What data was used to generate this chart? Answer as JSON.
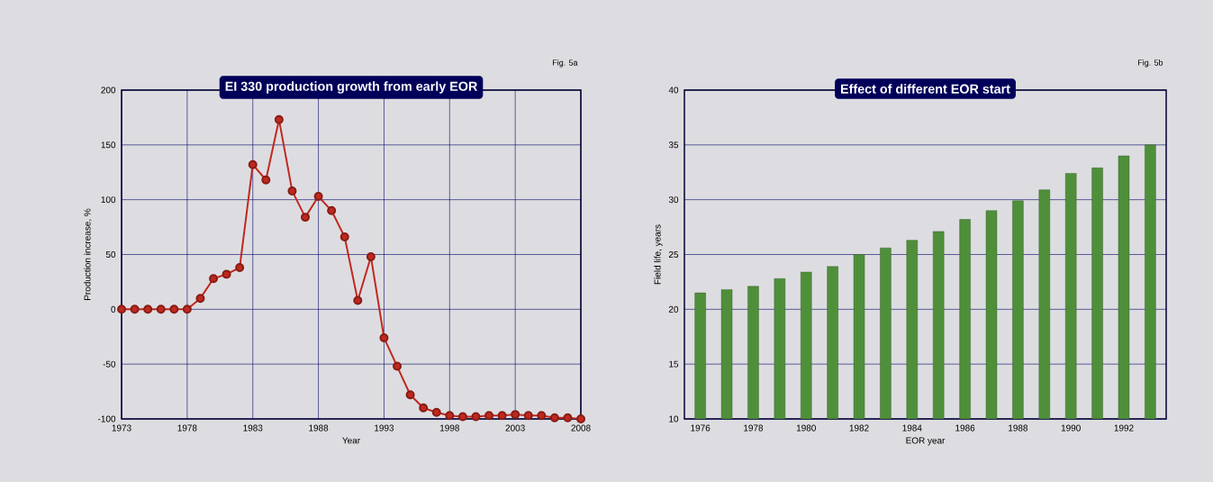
{
  "chart_data": [
    {
      "type": "line",
      "title": "EI 330 production growth from early EOR",
      "xlabel": "Year",
      "ylabel": "Production increase, %",
      "annotations": [
        "Fig. 5a"
      ],
      "x": [
        1973,
        1974,
        1975,
        1976,
        1977,
        1978,
        1979,
        1980,
        1981,
        1982,
        1983,
        1984,
        1985,
        1986,
        1987,
        1988,
        1989,
        1990,
        1991,
        1992,
        1993,
        1994,
        1995,
        1996,
        1997,
        1998,
        1999,
        2000,
        2001,
        2002,
        2003,
        2004,
        2005,
        2006,
        2007,
        2008
      ],
      "values": [
        0,
        0,
        0,
        0,
        0,
        0,
        10,
        28,
        32,
        38,
        132,
        118,
        173,
        108,
        84,
        103,
        90,
        66,
        8,
        48,
        -26,
        -52,
        -78,
        -90,
        -94,
        -97,
        -98,
        -98,
        -97,
        -97,
        -96,
        -97,
        -97,
        -99,
        -99,
        -100
      ],
      "color": "#c0281e",
      "marker": "circle",
      "xlim": [
        1973,
        2008
      ],
      "xticks": [
        1973,
        1978,
        1983,
        1988,
        1993,
        1998,
        2003,
        2008
      ],
      "ylim": [
        -100,
        200
      ],
      "yticks": [
        -100,
        -50,
        0,
        50,
        100,
        150,
        200
      ],
      "grid": true
    },
    {
      "type": "bar",
      "title": "Effect of different EOR start",
      "xlabel": "EOR year",
      "ylabel": "Field life, years",
      "annotations": [
        "Fig. 5b"
      ],
      "categories": [
        "1976",
        null,
        "1978",
        null,
        "1980",
        null,
        "1982",
        null,
        "1984",
        null,
        "1986",
        null,
        "1988",
        null,
        "1990",
        null,
        "1992",
        null
      ],
      "values": [
        21.5,
        21.8,
        22.1,
        22.8,
        23.4,
        23.9,
        25,
        25.6,
        26.3,
        27.1,
        28.2,
        29,
        29.9,
        30.9,
        32.4,
        32.9,
        34,
        35
      ],
      "color": "#4f8f3a",
      "ylim": [
        10,
        40
      ],
      "yticks": [
        10,
        15,
        20,
        25,
        30,
        35,
        40
      ],
      "grid": "y"
    }
  ]
}
